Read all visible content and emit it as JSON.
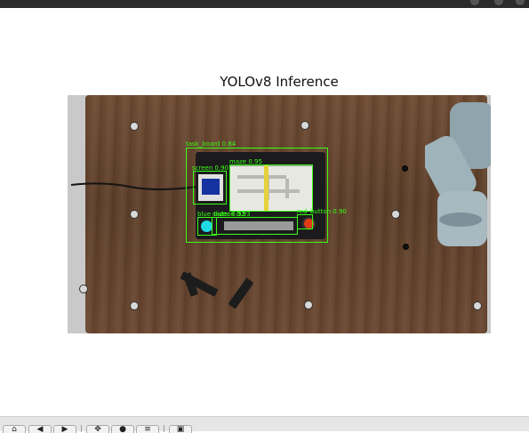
{
  "window": {
    "bar_color": "#2b2b2b"
  },
  "figure": {
    "title": "YOLOv8 Inference"
  },
  "detections": [
    {
      "label": "task_board 0.84",
      "box_color": "#39ff14"
    },
    {
      "label": "maze 0.95",
      "box_color": "#39ff14"
    },
    {
      "label": "screen 0.90",
      "box_color": "#39ff14"
    },
    {
      "label": "blue_button 0.93",
      "box_color": "#39ff14"
    },
    {
      "label": "slider 0.92",
      "box_color": "#39ff14"
    },
    {
      "label": "red_button 0.90",
      "box_color": "#39ff14"
    }
  ],
  "toolbar": {
    "buttons": [
      {
        "icon": "home-icon",
        "glyph": "⌂"
      },
      {
        "icon": "back-icon",
        "glyph": "◀"
      },
      {
        "icon": "forward-icon",
        "glyph": "▶"
      },
      {
        "icon": "pan-icon",
        "glyph": "✥"
      },
      {
        "icon": "zoom-icon",
        "glyph": "●"
      },
      {
        "icon": "configure-subplots-icon",
        "glyph": "≡"
      },
      {
        "icon": "save-icon",
        "glyph": "▣"
      }
    ]
  }
}
